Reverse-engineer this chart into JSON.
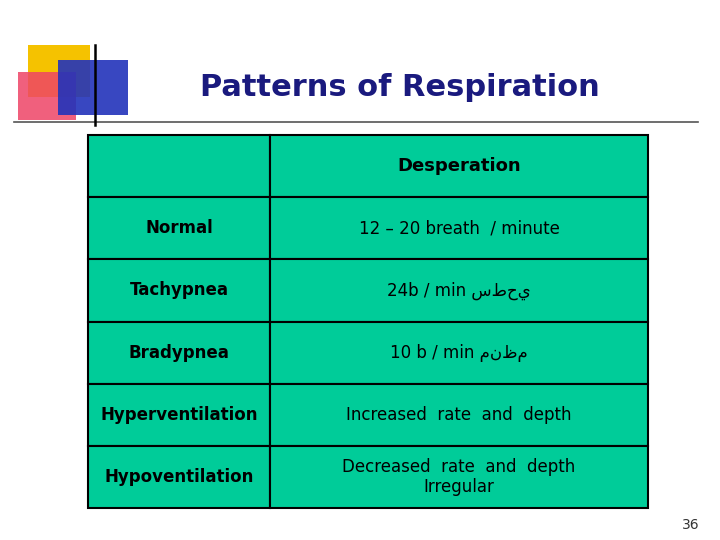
{
  "title": "Patterns of Respiration",
  "title_color": "#1a1a7e",
  "title_fontsize": 22,
  "bg_color": "#ffffff",
  "table_bg": "#00cc99",
  "table_border": "#000000",
  "header_text": "Desperation",
  "rows": [
    {
      "left": "Normal",
      "right": "12 – 20 breath  / minute"
    },
    {
      "left": "Tachypnea",
      "right": "24b / min سطحي"
    },
    {
      "left": "Bradypnea",
      "right": "10 b / min منظم"
    },
    {
      "left": "Hyperventilation",
      "right": "Increased  rate  and  depth"
    },
    {
      "left": "Hypoventilation",
      "right": "Decreased  rate  and  depth\nIrregular"
    }
  ],
  "cell_fontsize": 12,
  "header_fontsize": 13,
  "page_number": "36",
  "dec_yellow": "#f5c200",
  "dec_pink": "#ee4466",
  "dec_blue": "#2233bb",
  "line_color": "#555555"
}
